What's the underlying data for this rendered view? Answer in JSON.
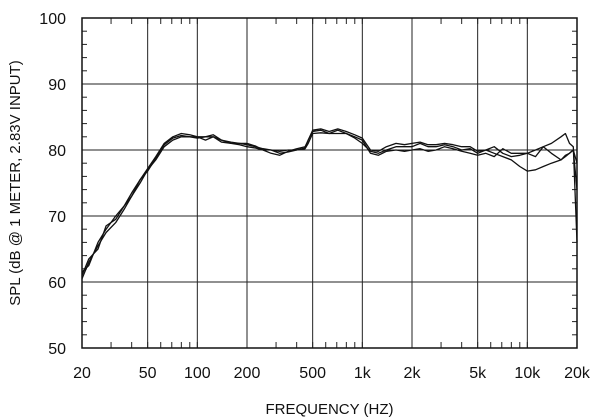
{
  "chart_data": {
    "type": "line",
    "xlabel": "FREQUENCY  (HZ)",
    "ylabel": "SPL (dB @ 1 METER, 2.83V INPUT)",
    "xscale": "log",
    "xlim": [
      20,
      20000
    ],
    "ylim": [
      50,
      100
    ],
    "yticks": [
      50,
      60,
      70,
      80,
      90,
      100
    ],
    "xticks": [
      20,
      50,
      100,
      200,
      500,
      1000,
      2000,
      5000,
      10000,
      20000
    ],
    "xtick_labels": [
      "20",
      "50",
      "100",
      "200",
      "500",
      "1k",
      "2k",
      "5k",
      "10k",
      "20k"
    ],
    "grid": true,
    "line_color": "#111111",
    "series": [
      {
        "x": [
          20,
          22,
          25,
          28,
          32,
          36,
          40,
          45,
          50,
          56,
          63,
          71,
          80,
          90,
          100,
          112,
          125,
          140,
          160,
          180,
          200,
          225,
          250,
          280,
          315,
          355,
          400,
          450,
          470,
          500,
          560,
          630,
          710,
          800,
          900,
          1000,
          1120,
          1250,
          1400,
          1600,
          1800,
          2000,
          2240,
          2500,
          2800,
          3150,
          3550,
          4000,
          4500,
          5000,
          5600,
          6300,
          7100,
          8000,
          9000,
          10000,
          11200,
          12500,
          14000,
          16000,
          17000,
          18000,
          19000,
          20000
        ],
        "values": [
          60.5,
          63,
          65.5,
          67.5,
          69,
          71,
          73,
          75,
          77,
          78.5,
          80.5,
          81.5,
          82,
          82,
          82,
          81.5,
          82,
          81.5,
          81,
          81,
          80.8,
          80.5,
          80.2,
          80,
          79.8,
          80,
          80,
          80.3,
          81.5,
          82.8,
          83,
          82.5,
          83,
          82.5,
          82,
          81.5,
          79.5,
          79.2,
          79.8,
          80,
          79.8,
          80,
          80.2,
          79.8,
          80,
          80.5,
          80.2,
          79.8,
          79.5,
          79.2,
          79.5,
          79,
          80.2,
          79.5,
          79.5,
          79.5,
          80,
          80.5,
          79.5,
          78.5,
          79.2,
          79.5,
          80,
          74
        ]
      },
      {
        "x": [
          20,
          22,
          25,
          28,
          32,
          36,
          40,
          45,
          50,
          56,
          63,
          71,
          80,
          90,
          100,
          112,
          125,
          140,
          160,
          180,
          200,
          225,
          250,
          280,
          315,
          355,
          400,
          450,
          470,
          500,
          560,
          630,
          710,
          800,
          900,
          1000,
          1120,
          1250,
          1400,
          1600,
          1800,
          2000,
          2240,
          2500,
          2800,
          3150,
          3550,
          4000,
          4500,
          5000,
          5600,
          6300,
          7100,
          8000,
          9000,
          10000,
          11200,
          12500,
          14000,
          16000,
          17000,
          18000,
          19000,
          20000
        ],
        "values": [
          61.5,
          62.5,
          66,
          68,
          70,
          71.5,
          73.5,
          75.5,
          77.2,
          79,
          81,
          82,
          82.5,
          82.3,
          82,
          82,
          82.3,
          81.5,
          81.2,
          81,
          81,
          80.6,
          80,
          80,
          79.5,
          79.7,
          80,
          80.2,
          81,
          82.5,
          82.6,
          82.5,
          82.5,
          82.5,
          81.8,
          81,
          79.8,
          79.5,
          80,
          80.5,
          80.5,
          80.5,
          81,
          80.5,
          80.5,
          80.8,
          80.5,
          80,
          80.2,
          79.5,
          80,
          80.5,
          79.5,
          79,
          79.2,
          79.5,
          79,
          80.5,
          81,
          82,
          82.5,
          81,
          80.5,
          66
        ]
      },
      {
        "x": [
          20,
          22,
          25,
          28,
          32,
          36,
          40,
          45,
          50,
          56,
          63,
          71,
          80,
          90,
          100,
          112,
          125,
          140,
          160,
          180,
          200,
          225,
          250,
          280,
          315,
          355,
          400,
          450,
          470,
          500,
          560,
          630,
          710,
          800,
          900,
          1000,
          1120,
          1250,
          1400,
          1600,
          1800,
          2000,
          2240,
          2500,
          2800,
          3150,
          3550,
          4000,
          4500,
          5000,
          5600,
          6300,
          7100,
          8000,
          9000,
          10000,
          11200,
          12500,
          14000,
          16000,
          17000,
          18000,
          19000,
          20000
        ],
        "values": [
          61,
          63.5,
          65,
          68.5,
          69.5,
          71.5,
          73,
          75.5,
          76.8,
          78.8,
          80.8,
          81.8,
          82.2,
          82,
          81.8,
          82,
          82,
          81.2,
          81,
          80.8,
          80.5,
          80.3,
          80,
          79.5,
          79.2,
          79.8,
          80.2,
          80.5,
          81.5,
          83,
          83.2,
          82.8,
          83.2,
          82.8,
          82.3,
          81.8,
          80,
          79.8,
          80.5,
          81,
          80.8,
          81,
          81.2,
          80.8,
          80.8,
          81,
          80.8,
          80.5,
          80.5,
          79.8,
          80,
          79.5,
          79,
          78.5,
          77.5,
          76.8,
          77,
          77.5,
          78,
          78.5,
          79,
          79.5,
          80,
          78
        ]
      }
    ]
  }
}
